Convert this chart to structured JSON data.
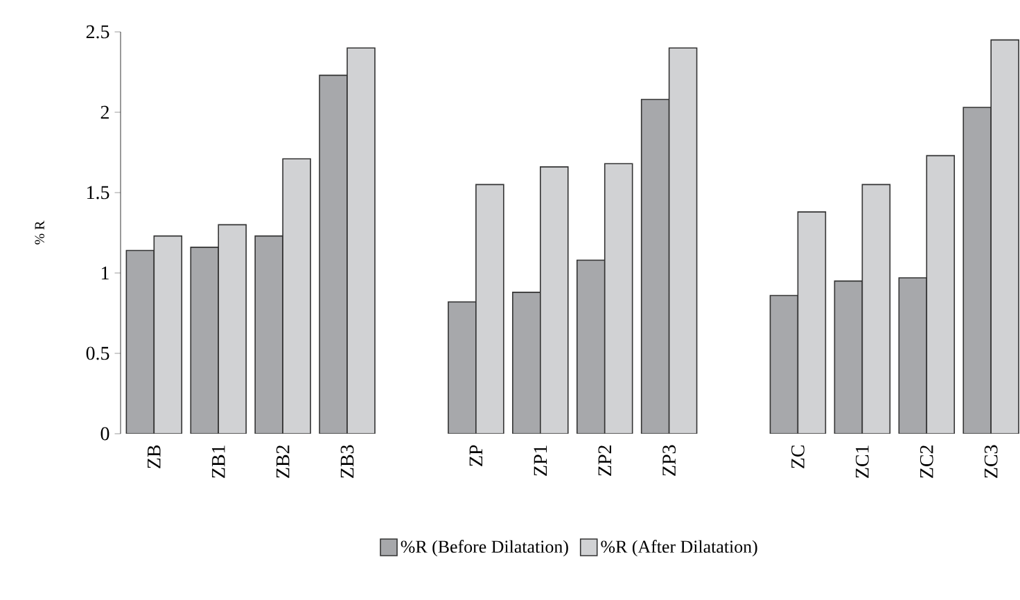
{
  "chart_data": {
    "type": "bar",
    "ylabel": "% R",
    "categories": [
      "ZB",
      "ZB1",
      "ZB2",
      "ZB3",
      null,
      "ZP",
      "ZP1",
      "ZP2",
      "ZP3",
      null,
      "ZC",
      "ZC1",
      "ZC2",
      "ZC3"
    ],
    "series": [
      {
        "name": "%R (Before Dilatation)",
        "color": "#a7a8ab",
        "values": [
          1.14,
          1.16,
          1.23,
          2.23,
          null,
          0.82,
          0.88,
          1.08,
          2.08,
          null,
          0.86,
          0.95,
          0.97,
          2.03
        ]
      },
      {
        "name": "%R (After Dilatation)",
        "color": "#d1d2d4",
        "values": [
          1.23,
          1.3,
          1.71,
          2.4,
          null,
          1.55,
          1.66,
          1.68,
          2.4,
          null,
          1.38,
          1.55,
          1.73,
          2.45
        ]
      }
    ],
    "ylim": [
      0,
      2.5
    ],
    "yticks": [
      0,
      0.5,
      1,
      1.5,
      2,
      2.5
    ],
    "legend": "bottom"
  }
}
